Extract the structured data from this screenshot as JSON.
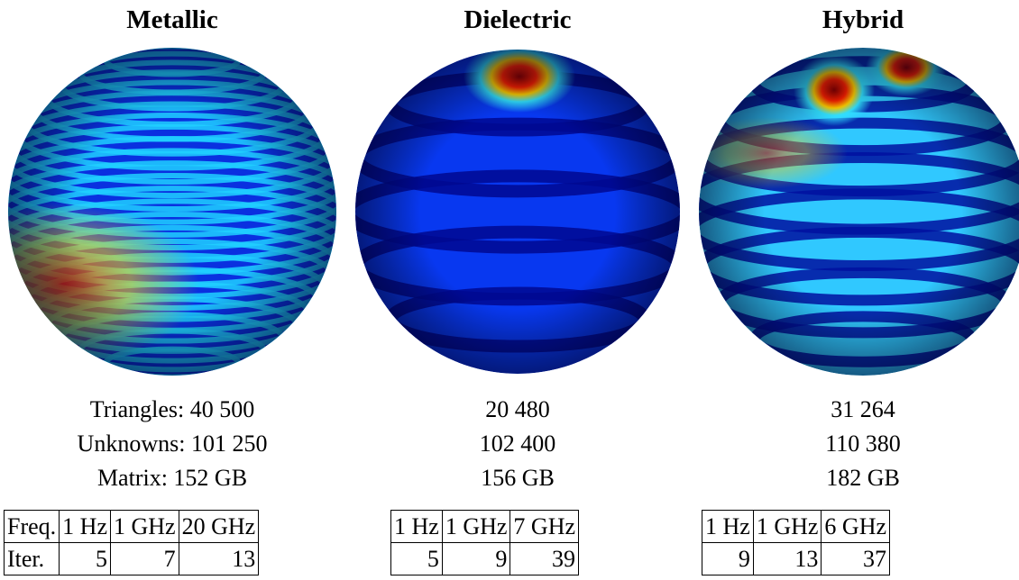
{
  "panels": [
    {
      "title": "Metallic",
      "stats": [
        "Triangles: 40 500",
        "Unknowns: 101 250",
        "Matrix: 152 GB"
      ],
      "table": {
        "rows": [
          [
            "Freq.",
            "1 Hz",
            "1 GHz",
            "20 GHz"
          ],
          [
            "Iter.",
            5,
            7,
            13
          ]
        ]
      }
    },
    {
      "title": "Dielectric",
      "stats": [
        "20 480",
        "102 400",
        "156 GB"
      ],
      "table": {
        "rows": [
          [
            "1 Hz",
            "1 GHz",
            "7 GHz"
          ],
          [
            5,
            9,
            39
          ]
        ]
      }
    },
    {
      "title": "Hybrid",
      "stats": [
        "31 264",
        "110 380",
        "182 GB"
      ],
      "table": {
        "rows": [
          [
            "1 Hz",
            "1 GHz",
            "6 GHz"
          ],
          [
            9,
            13,
            37
          ]
        ]
      }
    }
  ]
}
